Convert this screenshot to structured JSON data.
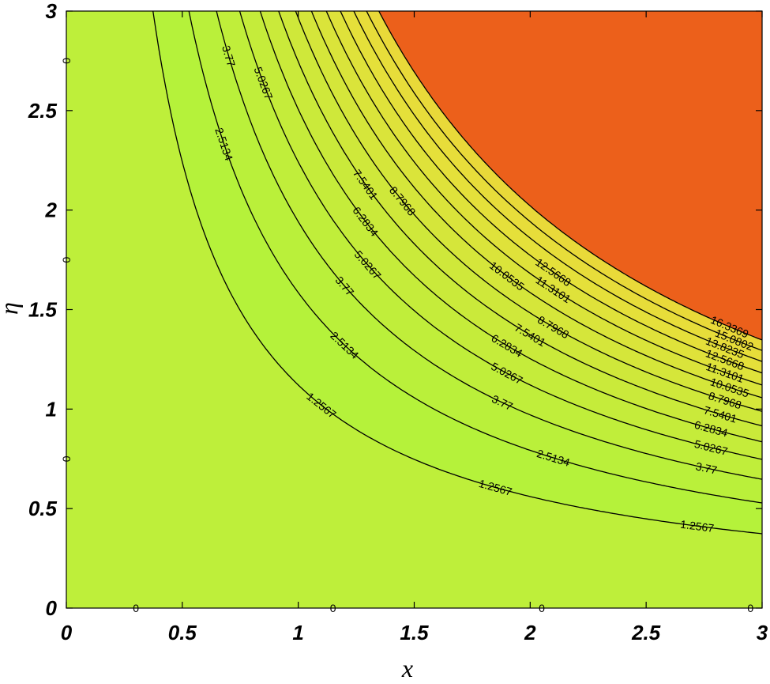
{
  "chart_data": {
    "type": "contour",
    "function": "eta^2 * x^2",
    "xlabel": "x",
    "ylabel": "η",
    "xlim": [
      0,
      3
    ],
    "ylim": [
      0,
      3
    ],
    "xticks": [
      "0",
      "0.5",
      "1",
      "1.5",
      "2",
      "2.5",
      "3"
    ],
    "yticks": [
      "0",
      "0.5",
      "1",
      "1.5",
      "2",
      "2.5",
      "3"
    ],
    "levels": [
      0,
      1.2567,
      2.5134,
      3.77,
      5.0267,
      6.2834,
      7.5401,
      8.7968,
      10.0535,
      11.3101,
      12.5668,
      13.8235,
      15.0802,
      16.3369
    ],
    "level_labels": [
      "0",
      "1.2567",
      "2.5134",
      "3.77",
      "5.0267",
      "6.2834",
      "7.5401",
      "8.7968",
      "10.0535",
      "11.3101",
      "12.5668",
      "13.8235",
      "15.0802",
      "16.3369"
    ],
    "colormap": [
      "#adf53a",
      "#e6e03a",
      "#f7b636",
      "#f17a26",
      "#e84f14",
      "#a51505",
      "#6c0500"
    ],
    "label_placements": [
      {
        "level": 0,
        "x": [
          0.3,
          1.15,
          2.05,
          2.95
        ],
        "y": [
          0,
          0,
          0,
          0
        ]
      },
      {
        "level": 0,
        "x": [
          0,
          0,
          0
        ],
        "y": [
          2.75,
          1.75,
          0.75
        ]
      },
      {
        "level": 1,
        "x": [
          0.23,
          1.1,
          1.85,
          2.72
        ]
      },
      {
        "level": 2,
        "x": [
          0.44,
          0.68,
          1.2,
          2.1
        ]
      },
      {
        "level": 3,
        "x": [
          0.7,
          1.2,
          1.88,
          2.76
        ]
      },
      {
        "level": 4,
        "x": [
          0.85,
          1.3,
          1.9,
          2.78
        ]
      },
      {
        "level": 5,
        "x": [
          1.29,
          1.9,
          2.78
        ]
      },
      {
        "level": 6,
        "x": [
          1.29,
          2.0,
          2.82
        ]
      },
      {
        "level": 7,
        "x": [
          1.45,
          2.1,
          2.84
        ]
      },
      {
        "level": 8,
        "x": [
          1.9,
          2.86
        ]
      },
      {
        "level": 9,
        "x": [
          2.1,
          2.84
        ]
      },
      {
        "level": 10,
        "x": [
          2.1,
          2.84
        ]
      },
      {
        "level": 11,
        "x": [
          2.84
        ]
      },
      {
        "level": 12,
        "x": [
          2.88
        ]
      },
      {
        "level": 13,
        "x": [
          2.86
        ]
      }
    ]
  }
}
